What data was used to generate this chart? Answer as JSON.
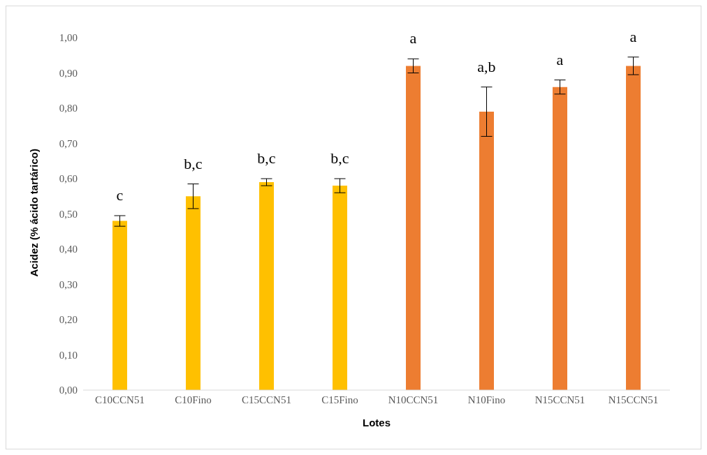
{
  "chart_data": {
    "type": "bar",
    "xlabel": "Lotes",
    "ylabel": "Acidez (% ácido tartárico)",
    "categories": [
      "C10CCN51",
      "C10Fino",
      "C15CCN51",
      "C15Fino",
      "N10CCN51",
      "N10Fino",
      "N15CCN51",
      "N15CCN51"
    ],
    "values": [
      0.48,
      0.55,
      0.59,
      0.58,
      0.92,
      0.79,
      0.86,
      0.92
    ],
    "errors": [
      0.015,
      0.035,
      0.01,
      0.02,
      0.02,
      0.07,
      0.02,
      0.025
    ],
    "colors": [
      "#ffc000",
      "#ffc000",
      "#ffc000",
      "#ffc000",
      "#ed7d31",
      "#ed7d31",
      "#ed7d31",
      "#ed7d31"
    ],
    "ylim": [
      0,
      1
    ],
    "yticks": [
      {
        "value": 0,
        "label": "0,00"
      },
      {
        "value": 0.1,
        "label": "0,10"
      },
      {
        "value": 0.2,
        "label": "0,20"
      },
      {
        "value": 0.3,
        "label": "0,30"
      },
      {
        "value": 0.4,
        "label": "0,40"
      },
      {
        "value": 0.5,
        "label": "0,50"
      },
      {
        "value": 0.6,
        "label": "0,60"
      },
      {
        "value": 0.7,
        "label": "0,70"
      },
      {
        "value": 0.8,
        "label": "0,80"
      },
      {
        "value": 0.9,
        "label": "0,90"
      },
      {
        "value": 1,
        "label": "1,00"
      }
    ],
    "annotations": [
      "c",
      "b,c",
      "b,c",
      "b,c",
      "a",
      "a,b",
      "a",
      "a"
    ],
    "grid": false,
    "legend": false
  }
}
